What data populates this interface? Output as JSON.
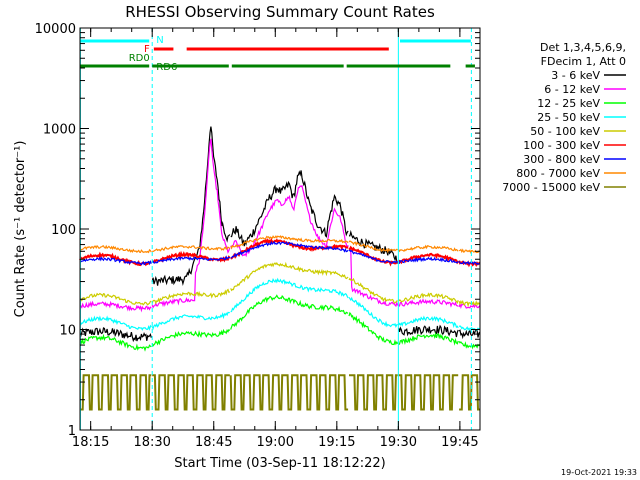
{
  "chart_data": {
    "type": "line",
    "title": "RHESSI Observing Summary Count Rates",
    "xlabel": "Start Time (03-Sep-11 18:12:22)",
    "ylabel": "Count Rate (s⁻¹ detector⁻¹)",
    "x_unit": "minutes after 18:12:22",
    "xlim": [
      0,
      97.5
    ],
    "ylim": [
      1,
      10000
    ],
    "y_scale": "log",
    "x_ticks": [
      {
        "t": 2.6,
        "label": "18:15"
      },
      {
        "t": 17.6,
        "label": "18:30"
      },
      {
        "t": 32.6,
        "label": "18:45"
      },
      {
        "t": 47.6,
        "label": "19:00"
      },
      {
        "t": 62.6,
        "label": "19:15"
      },
      {
        "t": 77.6,
        "label": "19:30"
      },
      {
        "t": 92.6,
        "label": "19:45"
      }
    ],
    "y_ticks": [
      {
        "v": 1,
        "label": "1"
      },
      {
        "v": 10,
        "label": "10"
      },
      {
        "v": 100,
        "label": "100"
      },
      {
        "v": 1000,
        "label": "1000"
      },
      {
        "v": 10000,
        "label": "10000"
      }
    ],
    "legend_header": [
      "Det 1,3,4,5,6,9,",
      "FDecim 1, Att 0"
    ],
    "legend_position": "right",
    "series": [
      {
        "name": "3 - 6 keV",
        "color": "#000000",
        "base": 9.5,
        "amp": 1.9,
        "ripple": 0.06,
        "noise": 0.1
      },
      {
        "name": "6 - 12 keV",
        "color": "#ff00ff",
        "base": 18,
        "amp": 1.0,
        "ripple": 0.05,
        "noise": 0.05
      },
      {
        "name": "12 - 25 keV",
        "color": "#00ff00",
        "base": 7.8,
        "amp": 1.6,
        "ripple": 0.12,
        "noise": 0.05
      },
      {
        "name": "25 - 50 keV",
        "color": "#00ffff",
        "base": 11.5,
        "amp": 1.6,
        "ripple": 0.12,
        "noise": 0.04
      },
      {
        "name": "50 - 100 keV",
        "color": "#cccc00",
        "base": 20,
        "amp": 1.2,
        "ripple": 0.1,
        "noise": 0.04
      },
      {
        "name": "100 - 300 keV",
        "color": "#ff0000",
        "base": 50,
        "amp": 0.45,
        "ripple": 0.1,
        "noise": 0.03
      },
      {
        "name": "300 - 800 keV",
        "color": "#0000ff",
        "base": 48,
        "amp": 0.5,
        "ripple": 0.05,
        "noise": 0.03
      },
      {
        "name": "800 - 7000 keV",
        "color": "#ff8800",
        "base": 63,
        "amp": 0.3,
        "ripple": 0.05,
        "noise": 0.03
      },
      {
        "name": "7000 - 15000 keV",
        "color": "#808000",
        "base": 3.2,
        "amp": 0.0,
        "ripple": 0.0,
        "noise": 0.0
      }
    ],
    "flare_profile_3_6": [
      [
        17.6,
        30
      ],
      [
        26,
        32
      ],
      [
        29,
        60
      ],
      [
        30,
        130
      ],
      [
        31,
        400
      ],
      [
        31.8,
        1150
      ],
      [
        32.6,
        500
      ],
      [
        33.5,
        300
      ],
      [
        34.5,
        120
      ],
      [
        36,
        80
      ],
      [
        38,
        100
      ],
      [
        40,
        70
      ],
      [
        42,
        90
      ],
      [
        44,
        130
      ],
      [
        46,
        200
      ],
      [
        48,
        260
      ],
      [
        49,
        230
      ],
      [
        51,
        280
      ],
      [
        52,
        200
      ],
      [
        53,
        320
      ],
      [
        54,
        360
      ],
      [
        56,
        170
      ],
      [
        58,
        110
      ],
      [
        60,
        90
      ],
      [
        61,
        140
      ],
      [
        62,
        210
      ],
      [
        63.5,
        170
      ],
      [
        65,
        90
      ],
      [
        67,
        80
      ],
      [
        70,
        70
      ],
      [
        75,
        60
      ],
      [
        77.5,
        50
      ]
    ],
    "bars": [
      {
        "label": "N",
        "color": "#00ffff",
        "segments": [
          [
            0,
            17.6
          ],
          [
            78,
            96
          ]
        ]
      },
      {
        "label": "F",
        "color": "#ff0000",
        "segments": [
          [
            18,
            23.5
          ],
          [
            26,
            76
          ]
        ]
      },
      {
        "label": "RD0",
        "color": "#008000",
        "segments": [
          [
            0,
            17.6
          ],
          [
            17.6,
            37
          ],
          [
            37,
            65
          ],
          [
            65,
            91
          ],
          [
            94,
            97
          ]
        ]
      }
    ],
    "rd6_label": "RD6",
    "vlines": [
      {
        "t": 0.1,
        "style": "solid"
      },
      {
        "t": 17.6,
        "style": "dashed"
      },
      {
        "t": 77.6,
        "style": "solid"
      },
      {
        "t": 95.4,
        "style": "dashed"
      }
    ],
    "attenuator_steps": [
      17.6,
      36.8,
      65.5,
      77.6,
      92.5
    ]
  },
  "footer": {
    "timestamp": "19-Oct-2021 19:33"
  },
  "colors": {
    "background": "#ffffff",
    "axis": "#000000",
    "vline": "#00ffff"
  }
}
